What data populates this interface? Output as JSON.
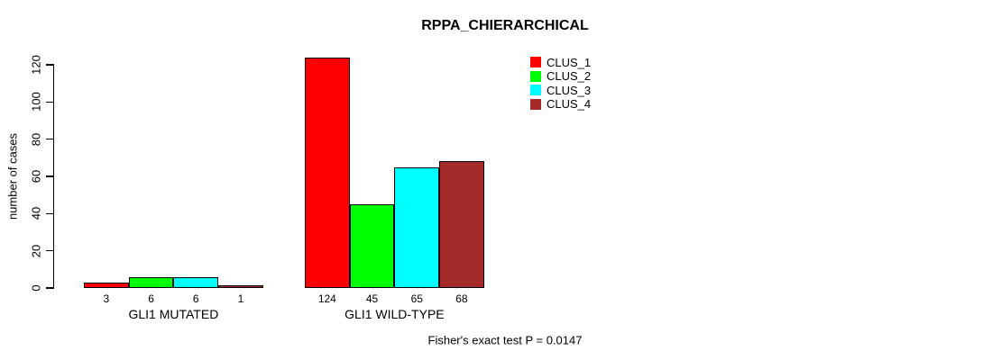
{
  "chart_data": {
    "type": "bar",
    "title": "RPPA_CHIERARCHICAL",
    "ylabel": "number of cases",
    "xlabel": "",
    "ylim": [
      0,
      130
    ],
    "yticks": [
      0,
      20,
      40,
      60,
      80,
      100,
      120
    ],
    "grid": false,
    "legend_position": "top-right-outside",
    "categories": [
      "GLI1 MUTATED",
      "GLI1 WILD-TYPE"
    ],
    "series": [
      {
        "name": "CLUS_1",
        "color": "#FF0000",
        "values": [
          3,
          124
        ]
      },
      {
        "name": "CLUS_2",
        "color": "#00FF00",
        "values": [
          6,
          45
        ]
      },
      {
        "name": "CLUS_3",
        "color": "#00FFFF",
        "values": [
          6,
          65
        ]
      },
      {
        "name": "CLUS_4",
        "color": "#A52A2A",
        "values": [
          1,
          68
        ]
      }
    ],
    "bar_value_labels": [
      [
        3,
        6,
        6,
        1
      ],
      [
        124,
        45,
        65,
        68
      ]
    ],
    "annotation": "Fisher's exact test P = 0.0147",
    "axis_color": "#000000",
    "background": "#FFFFFF"
  }
}
